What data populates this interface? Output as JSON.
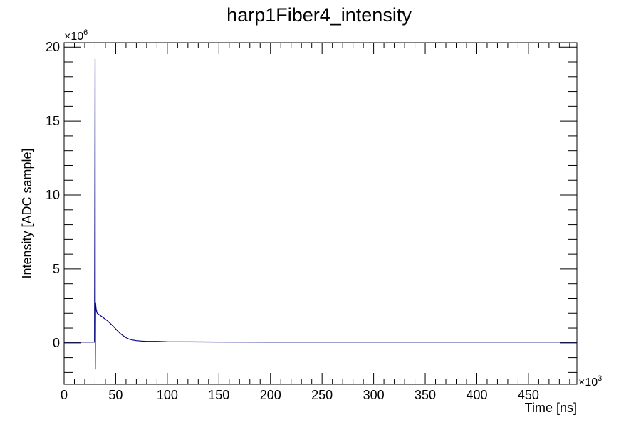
{
  "chart_data": {
    "type": "line",
    "title": "harp1Fiber4_intensity",
    "xlabel": "Time [ns]",
    "ylabel": "Intensity [ADC sample]",
    "x_multiplier": "×10",
    "x_multiplier_exp": "3",
    "y_multiplier": "×10",
    "y_multiplier_exp": "6",
    "xlim": [
      0,
      497
    ],
    "ylim": [
      -2.8,
      20.3
    ],
    "x_ticks": [
      0,
      50,
      100,
      150,
      200,
      250,
      300,
      350,
      400,
      450
    ],
    "x_tick_labels": [
      "0",
      "50",
      "100",
      "150",
      "200",
      "250",
      "300",
      "350",
      "400",
      "450"
    ],
    "y_ticks": [
      0,
      5,
      10,
      15,
      20
    ],
    "y_tick_labels": [
      "0",
      "5",
      "10",
      "15",
      "20"
    ],
    "grid": false,
    "legend": "none",
    "series": [
      {
        "color": "#000080",
        "x": [
          0,
          10,
          20,
          29.5,
          30,
          30.2,
          30.5,
          31,
          32,
          34,
          36,
          38,
          40,
          42,
          45,
          48,
          50,
          52,
          55,
          58,
          60,
          63,
          66,
          70,
          75,
          80,
          90,
          100,
          120,
          150,
          200,
          250,
          300,
          350,
          400,
          450,
          497
        ],
        "y": [
          0.05,
          0.05,
          0.05,
          0.05,
          19.2,
          -1.8,
          2.7,
          2.3,
          2.0,
          1.9,
          1.8,
          1.7,
          1.6,
          1.5,
          1.3,
          1.1,
          0.95,
          0.8,
          0.6,
          0.45,
          0.35,
          0.25,
          0.2,
          0.15,
          0.12,
          0.1,
          0.1,
          0.08,
          0.07,
          0.06,
          0.05,
          0.05,
          0.05,
          0.05,
          0.05,
          0.05,
          0.05
        ]
      }
    ]
  }
}
